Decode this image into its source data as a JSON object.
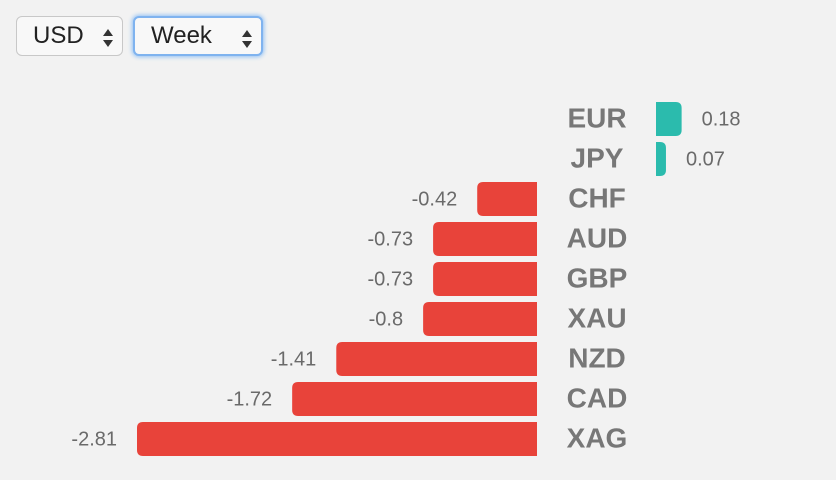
{
  "controls": {
    "currency": "USD",
    "period": "Week"
  },
  "chart_data": {
    "type": "bar",
    "orientation": "horizontal",
    "categories": [
      "EUR",
      "JPY",
      "CHF",
      "AUD",
      "GBP",
      "XAU",
      "NZD",
      "CAD",
      "XAG"
    ],
    "values": [
      0.18,
      0.07,
      -0.42,
      -0.73,
      -0.73,
      -0.8,
      -1.41,
      -1.72,
      -2.81
    ],
    "positive_color": "#2bbbad",
    "negative_color": "#e8433a"
  }
}
